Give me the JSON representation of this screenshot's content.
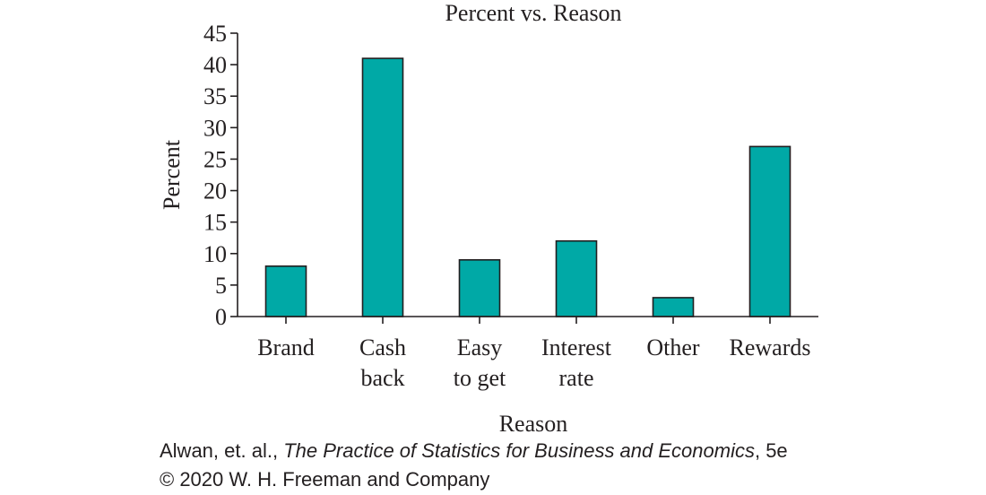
{
  "chart_data": {
    "type": "bar",
    "title": "Percent vs. Reason",
    "xlabel": "Reason",
    "ylabel": "Percent",
    "categories": [
      "Brand",
      "Cash back",
      "Easy to get",
      "Interest rate",
      "Other",
      "Rewards"
    ],
    "category_label_lines": [
      [
        "Brand"
      ],
      [
        "Cash",
        "back"
      ],
      [
        "Easy",
        "to get"
      ],
      [
        "Interest",
        "rate"
      ],
      [
        "Other"
      ],
      [
        "Rewards"
      ]
    ],
    "values": [
      8,
      41,
      9,
      12,
      3,
      27
    ],
    "ylim": [
      0,
      45
    ],
    "yticks": [
      0,
      5,
      10,
      15,
      20,
      25,
      30,
      35,
      40,
      45
    ],
    "grid": false,
    "bar_color": "#00a9a6",
    "bar_edge_color": "#231f20"
  },
  "credit": {
    "authors": "Alwan, et. al., ",
    "book_title": "The Practice of Statistics for Business and Economics",
    "edition": ", 5e",
    "copyright": "© 2020 W. H. Freeman and Company"
  }
}
